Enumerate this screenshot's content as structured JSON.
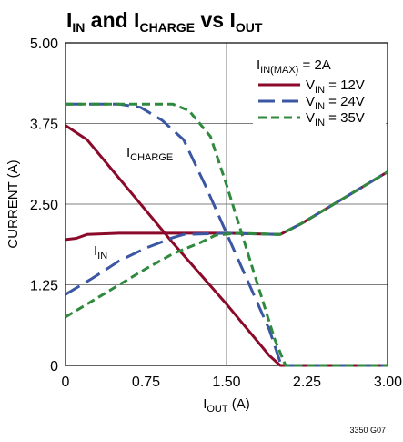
{
  "chart_data": {
    "type": "line",
    "title": {
      "p1_base": "I",
      "p1_sub": "IN",
      "p2_base": " and I",
      "p2_sub": "CHARGE",
      "p3_base": " vs I",
      "p3_sub": "OUT"
    },
    "xlabel": {
      "base": "I",
      "sub": "OUT",
      "unit": " (A)"
    },
    "ylabel": "CURRENT (A)",
    "xlim": [
      0,
      3
    ],
    "ylim": [
      0,
      5
    ],
    "x_ticks": [
      "0",
      "0.75",
      "1.50",
      "2.25",
      "3.00"
    ],
    "x_tick_values": [
      0,
      0.75,
      1.5,
      2.25,
      3.0
    ],
    "y_ticks": [
      "0",
      "1.25",
      "2.50",
      "3.75",
      "5.00"
    ],
    "y_tick_values": [
      0,
      1.25,
      2.5,
      3.75,
      5.0
    ],
    "grid": true,
    "legend": {
      "placement": "top-right",
      "header": {
        "base": "I",
        "sub": "IN(MAX)",
        "rest": " = 2A"
      },
      "entries": [
        {
          "base": "V",
          "sub": "IN",
          "rest": " = 12V"
        },
        {
          "base": "V",
          "sub": "IN",
          "rest": " = 24V"
        },
        {
          "base": "V",
          "sub": "IN",
          "rest": " = 35V"
        }
      ]
    },
    "annotations": [
      {
        "base": "I",
        "sub": "CHARGE"
      },
      {
        "base": "I",
        "sub": "IN"
      }
    ],
    "series": [
      {
        "name": "VIN = 12V",
        "color": "#8b0a2a",
        "dash": "solid",
        "curve": "ICHARGE",
        "points": [
          [
            0,
            3.72
          ],
          [
            0.2,
            3.5
          ],
          [
            0.5,
            2.9
          ],
          [
            1.0,
            1.9
          ],
          [
            1.5,
            0.95
          ],
          [
            1.9,
            0.15
          ],
          [
            2.0,
            0.0
          ],
          [
            3.0,
            0.0
          ]
        ]
      },
      {
        "name": "VIN = 24V",
        "color": "#3b57a3",
        "dash": "long",
        "curve": "ICHARGE",
        "points": [
          [
            0,
            4.05
          ],
          [
            0.5,
            4.05
          ],
          [
            0.7,
            4.0
          ],
          [
            0.9,
            3.8
          ],
          [
            1.1,
            3.5
          ],
          [
            1.3,
            2.8
          ],
          [
            1.5,
            2.05
          ],
          [
            1.7,
            1.3
          ],
          [
            1.9,
            0.55
          ],
          [
            2.0,
            0.05
          ],
          [
            2.05,
            0.0
          ],
          [
            3.0,
            0.0
          ]
        ]
      },
      {
        "name": "VIN = 35V",
        "color": "#2f8a3e",
        "dash": "short",
        "curve": "ICHARGE",
        "points": [
          [
            0,
            4.05
          ],
          [
            1.0,
            4.05
          ],
          [
            1.15,
            3.95
          ],
          [
            1.35,
            3.55
          ],
          [
            1.5,
            2.8
          ],
          [
            1.65,
            2.0
          ],
          [
            1.8,
            1.2
          ],
          [
            1.95,
            0.4
          ],
          [
            2.05,
            0.0
          ],
          [
            3.0,
            0.0
          ]
        ]
      },
      {
        "name": "VIN = 12V",
        "color": "#8b0a2a",
        "dash": "solid",
        "curve": "IIN",
        "points": [
          [
            0,
            1.95
          ],
          [
            0.1,
            1.97
          ],
          [
            0.2,
            2.03
          ],
          [
            0.5,
            2.05
          ],
          [
            1.0,
            2.05
          ],
          [
            1.5,
            2.05
          ],
          [
            2.0,
            2.03
          ],
          [
            2.2,
            2.2
          ],
          [
            3.0,
            3.0
          ]
        ]
      },
      {
        "name": "VIN = 24V",
        "color": "#3b57a3",
        "dash": "long",
        "curve": "IIN",
        "points": [
          [
            0,
            1.1
          ],
          [
            0.25,
            1.35
          ],
          [
            0.5,
            1.62
          ],
          [
            0.75,
            1.82
          ],
          [
            1.0,
            1.98
          ],
          [
            1.1,
            2.03
          ],
          [
            1.5,
            2.05
          ],
          [
            2.0,
            2.03
          ],
          [
            2.2,
            2.2
          ],
          [
            3.0,
            3.0
          ]
        ]
      },
      {
        "name": "VIN = 35V",
        "color": "#2f8a3e",
        "dash": "short",
        "curve": "IIN",
        "points": [
          [
            0,
            0.75
          ],
          [
            0.25,
            1.0
          ],
          [
            0.5,
            1.25
          ],
          [
            0.75,
            1.5
          ],
          [
            1.0,
            1.73
          ],
          [
            1.25,
            1.9
          ],
          [
            1.4,
            2.02
          ],
          [
            1.6,
            2.05
          ],
          [
            2.0,
            2.03
          ],
          [
            2.2,
            2.2
          ],
          [
            3.0,
            3.0
          ]
        ]
      }
    ]
  },
  "figure_id": "3350 G07"
}
